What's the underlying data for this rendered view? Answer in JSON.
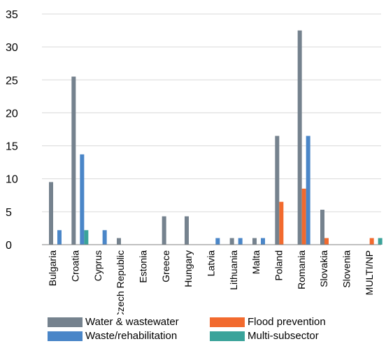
{
  "chart_data": {
    "type": "bar",
    "categories": [
      "Bulgaria",
      "Croatia",
      "Cyprus",
      "Czech Republic",
      "Estonia",
      "Greece",
      "Hungary",
      "Latvia",
      "Lithuania",
      "Malta",
      "Poland",
      "Romania",
      "Slovakia",
      "Slovenia",
      "MULTI/NP"
    ],
    "series": [
      {
        "name": "Water & wastewater",
        "color": "#75828e",
        "values": [
          9.5,
          25.5,
          0,
          1,
          0,
          4.3,
          4.3,
          0,
          1,
          1,
          16.5,
          32.5,
          5.3,
          0,
          0
        ]
      },
      {
        "name": "Flood prevention",
        "color": "#f26a2e",
        "values": [
          0,
          0,
          0,
          0,
          0,
          0,
          0,
          0,
          0,
          0,
          6.5,
          8.5,
          1,
          0,
          1
        ]
      },
      {
        "name": "Waste/rehabilitation",
        "color": "#4a86c8",
        "values": [
          2.2,
          13.7,
          2.2,
          0,
          0,
          0,
          0,
          1,
          1,
          1,
          0,
          16.5,
          0,
          0,
          0
        ]
      },
      {
        "name": "Multi-subsector",
        "color": "#3aa39a",
        "values": [
          0,
          2.2,
          0,
          0,
          0,
          0,
          0,
          0,
          0,
          0,
          0,
          0,
          0,
          0,
          1
        ]
      }
    ],
    "xlabel": "",
    "ylabel": "",
    "ylim": [
      0,
      35
    ],
    "yticks": [
      0,
      5,
      10,
      15,
      20,
      25,
      30,
      35
    ],
    "grid": true,
    "legend_placement": "bottom"
  }
}
